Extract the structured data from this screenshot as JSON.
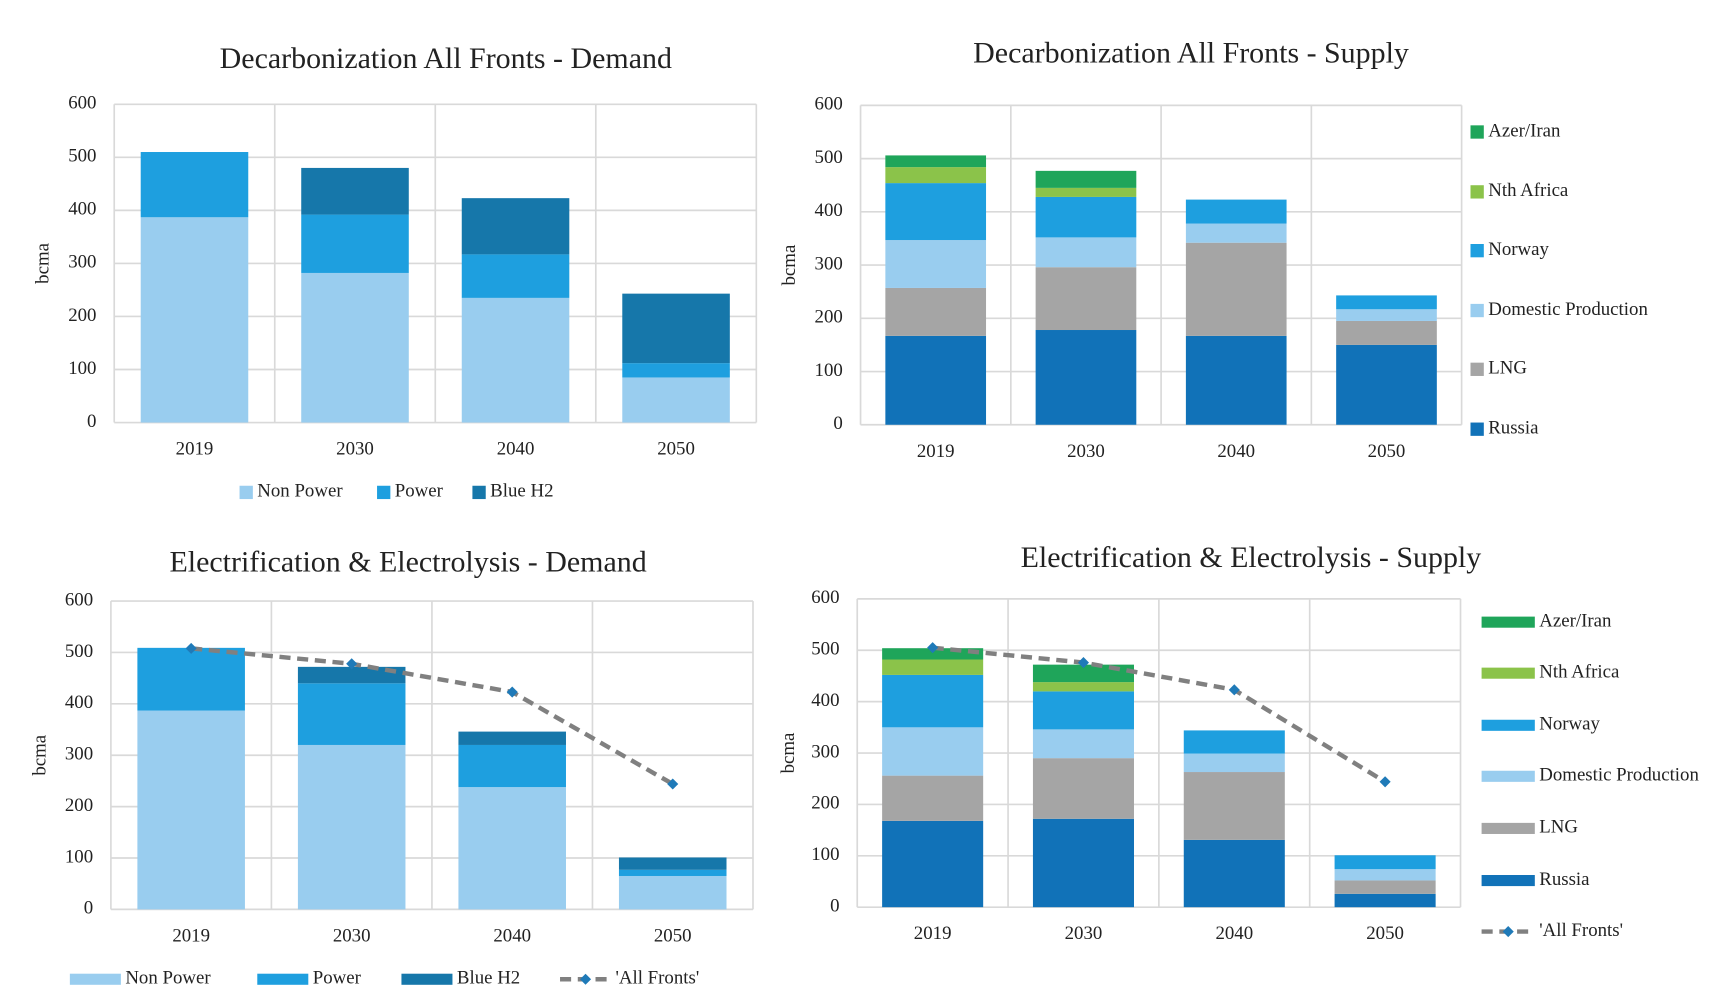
{
  "chart_data": [
    {
      "type": "bar",
      "stacked": true,
      "title": "Decarbonization All Fronts - Demand",
      "y_label": "bcma",
      "categories": [
        "2019",
        "2030",
        "2040",
        "2050"
      ],
      "series": [
        {
          "name": "Non Power",
          "color": "#99cdef",
          "values": [
            387,
            282,
            235,
            85
          ]
        },
        {
          "name": "Power",
          "color": "#1e9fdf",
          "values": [
            123,
            110,
            82,
            27
          ]
        },
        {
          "name": "Blue H2",
          "color": "#1677aa",
          "values": [
            0,
            88,
            106,
            131
          ]
        }
      ],
      "ylim": [
        0,
        600
      ],
      "yticks": [
        0,
        100,
        200,
        300,
        400,
        500,
        600
      ],
      "grid": true,
      "legend": "bottom"
    },
    {
      "type": "bar",
      "stacked": true,
      "title": "Decarbonization All Fronts - Supply",
      "y_label": "bcma",
      "categories": [
        "2019",
        "2030",
        "2040",
        "2050"
      ],
      "series": [
        {
          "name": "Russia",
          "color": "#1172b8",
          "values": [
            167,
            178,
            167,
            150
          ]
        },
        {
          "name": "LNG",
          "color": "#a5a5a5",
          "values": [
            90,
            118,
            175,
            45
          ]
        },
        {
          "name": "Domestic Production",
          "color": "#99cdef",
          "values": [
            90,
            56,
            36,
            22
          ]
        },
        {
          "name": "Norway",
          "color": "#1e9fdf",
          "values": [
            107,
            76,
            45,
            26
          ]
        },
        {
          "name": "Nth Africa",
          "color": "#8bc34a",
          "values": [
            30,
            17,
            0,
            0
          ]
        },
        {
          "name": "Azer/Iran",
          "color": "#1fa55a",
          "values": [
            22,
            32,
            0,
            0
          ]
        }
      ],
      "ylim": [
        0,
        600
      ],
      "yticks": [
        0,
        100,
        200,
        300,
        400,
        500,
        600
      ],
      "grid": true,
      "legend": "right"
    },
    {
      "type": "bar",
      "stacked": true,
      "title": "Electrification & Electrolysis - Demand",
      "y_label": "bcma",
      "categories": [
        "2019",
        "2030",
        "2040",
        "2050"
      ],
      "series": [
        {
          "name": "Non Power",
          "color": "#99cdef",
          "values": [
            387,
            320,
            238,
            65
          ]
        },
        {
          "name": "Power",
          "color": "#1e9fdf",
          "values": [
            122,
            120,
            82,
            12
          ]
        },
        {
          "name": "Blue H2",
          "color": "#1677aa",
          "values": [
            0,
            32,
            26,
            24
          ]
        },
        {
          "name": "'All Fronts'",
          "type": "line",
          "color": "#808080",
          "marker_color": "#1f7ab8",
          "values": [
            508,
            478,
            423,
            244
          ]
        }
      ],
      "ylim": [
        0,
        600
      ],
      "yticks": [
        0,
        100,
        200,
        300,
        400,
        500,
        600
      ],
      "grid": true,
      "legend": "bottom"
    },
    {
      "type": "bar",
      "stacked": true,
      "title": "Electrification & Electrolysis - Supply",
      "y_label": "bcma",
      "categories": [
        "2019",
        "2030",
        "2040",
        "2050"
      ],
      "series": [
        {
          "name": "Russia",
          "color": "#1172b8",
          "values": [
            168,
            172,
            131,
            26
          ]
        },
        {
          "name": "LNG",
          "color": "#a5a5a5",
          "values": [
            88,
            118,
            132,
            26
          ]
        },
        {
          "name": "Domestic Production",
          "color": "#99cdef",
          "values": [
            94,
            56,
            36,
            22
          ]
        },
        {
          "name": "Norway",
          "color": "#1e9fdf",
          "values": [
            102,
            74,
            45,
            27
          ]
        },
        {
          "name": "Nth Africa",
          "color": "#8bc34a",
          "values": [
            30,
            18,
            0,
            0
          ]
        },
        {
          "name": "Azer/Iran",
          "color": "#1fa55a",
          "values": [
            22,
            34,
            0,
            0
          ]
        },
        {
          "name": "'All Fronts'",
          "type": "line",
          "color": "#808080",
          "marker_color": "#1f7ab8",
          "values": [
            505,
            476,
            423,
            244
          ]
        }
      ],
      "ylim": [
        0,
        600
      ],
      "yticks": [
        0,
        100,
        200,
        300,
        400,
        500,
        600
      ],
      "grid": true,
      "legend": "right"
    }
  ]
}
